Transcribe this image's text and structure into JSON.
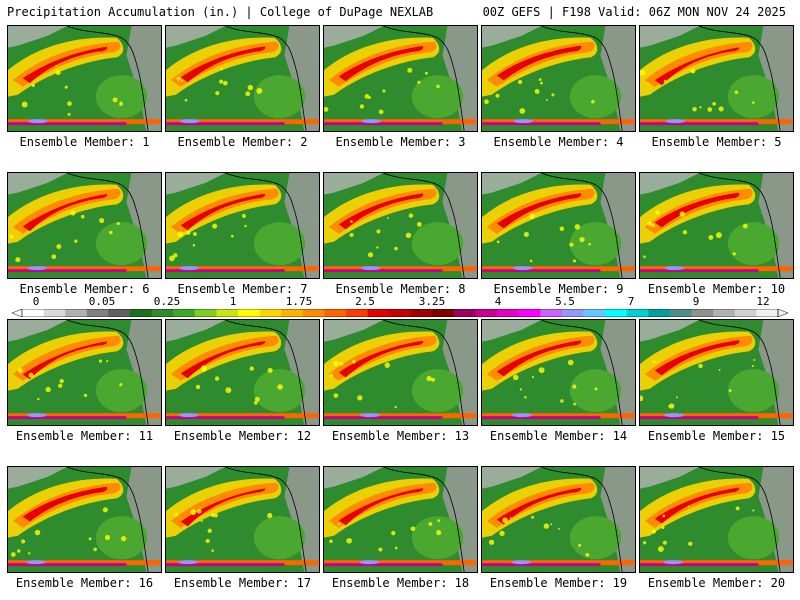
{
  "header": {
    "title": "Precipitation Accumulation (in.) | College of DuPage NEXLAB",
    "run_info": "00Z GEFS | F198 Valid: 06Z MON NOV 24 2025"
  },
  "members": [
    "Ensemble Member: 1",
    "Ensemble Member: 2",
    "Ensemble Member: 3",
    "Ensemble Member: 4",
    "Ensemble Member: 5",
    "Ensemble Member: 6",
    "Ensemble Member: 7",
    "Ensemble Member: 8",
    "Ensemble Member: 9",
    "Ensemble Member: 10",
    "Ensemble Member: 11",
    "Ensemble Member: 12",
    "Ensemble Member: 13",
    "Ensemble Member: 14",
    "Ensemble Member: 15",
    "Ensemble Member: 16",
    "Ensemble Member: 17",
    "Ensemble Member: 18",
    "Ensemble Member: 19",
    "Ensemble Member: 20"
  ],
  "colorbar": {
    "labels": [
      "0",
      "0.05",
      "0.25",
      "1",
      "1.75",
      "2.5",
      "3.25",
      "4",
      "5.5",
      "7",
      "9",
      "12"
    ],
    "colors": [
      "#ffffff",
      "#d9d9d9",
      "#b0b0b0",
      "#808080",
      "#606060",
      "#1e6e1e",
      "#2e8b2e",
      "#3caa28",
      "#7fcd1e",
      "#c8e614",
      "#ffff00",
      "#ffd700",
      "#ffb000",
      "#ff8c00",
      "#ff6400",
      "#ff3c00",
      "#e60000",
      "#c80000",
      "#a00000",
      "#800000",
      "#a0005a",
      "#c8008c",
      "#e600c8",
      "#ff00ff",
      "#c864ff",
      "#9696ff",
      "#64c8ff",
      "#00ffff",
      "#00d2d2",
      "#00a0a0",
      "#508c8c",
      "#909090",
      "#b0b0b0",
      "#d0d0d0",
      "#f0f0f0"
    ]
  }
}
